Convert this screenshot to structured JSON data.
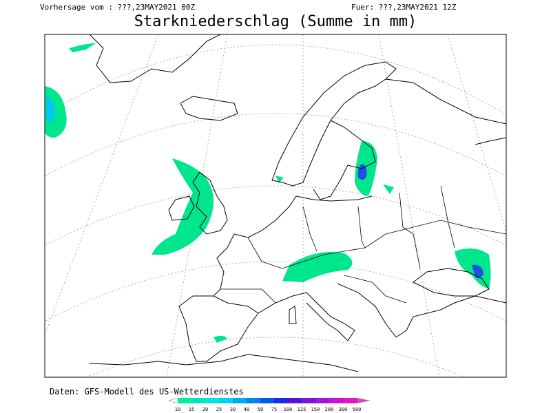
{
  "header": {
    "left": "Vorhersage vom : ???,23MAY2021 00Z",
    "right": "Fuer: ???,23MAY2021 12Z"
  },
  "title": "Starkniederschlag (Summe in mm)",
  "footer": "Daten: GFS-Modell des US-Wetterdienstes",
  "legend": {
    "items": [
      {
        "label": 10,
        "color": "#00f096"
      },
      {
        "label": 15,
        "color": "#00e6b4"
      },
      {
        "label": 20,
        "color": "#00e6dc"
      },
      {
        "label": 25,
        "color": "#00d2f0"
      },
      {
        "label": 30,
        "color": "#00aaf0"
      },
      {
        "label": 40,
        "color": "#0082f0"
      },
      {
        "label": 50,
        "color": "#005ae6"
      },
      {
        "label": 75,
        "color": "#1e28e6"
      },
      {
        "label": 100,
        "color": "#5014dc"
      },
      {
        "label": 125,
        "color": "#7814dc"
      },
      {
        "label": 150,
        "color": "#a014dc"
      },
      {
        "label": 200,
        "color": "#c814d2"
      },
      {
        "label": 300,
        "color": "#e614be"
      },
      {
        "label": 500,
        "color": "#c850b4"
      }
    ]
  }
}
